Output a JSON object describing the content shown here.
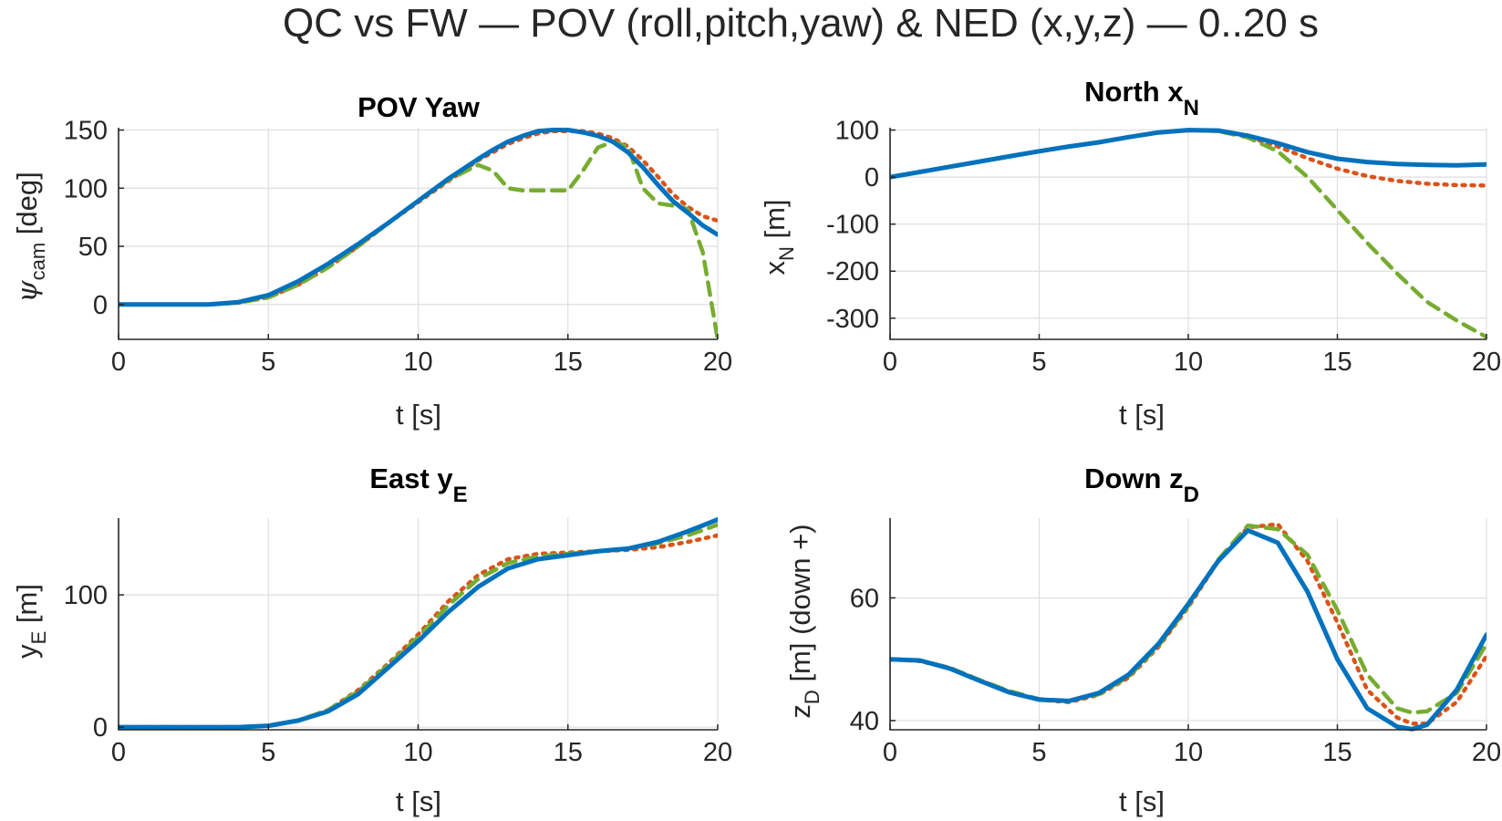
{
  "figure": {
    "title": "QC vs FW — POV (roll,pitch,yaw) & NED (x,y,z) — 0..20 s"
  },
  "colors": {
    "series_1": "#0072BD",
    "series_2": "#D95319",
    "series_3": "#77AC30"
  },
  "chart_data": [
    {
      "type": "line",
      "title_main": "POV Yaw",
      "title_sub": "",
      "xlabel": "t [s]",
      "ylabel_main": "ψ",
      "ylabel_sub": "cam",
      "ylabel_suffix": " [deg]",
      "xlim": [
        0,
        20
      ],
      "ylim": [
        -30,
        152
      ],
      "xticks": [
        0,
        5,
        10,
        15,
        20
      ],
      "yticks": [
        0,
        50,
        100,
        150
      ],
      "grid": true,
      "x": [
        0,
        1,
        2,
        3,
        4,
        5,
        6,
        7,
        8,
        9,
        10,
        11,
        12,
        12.5,
        13,
        13.5,
        14,
        14.5,
        15,
        15.5,
        16,
        16.5,
        17,
        17.5,
        18,
        18.5,
        19,
        19.5,
        20
      ],
      "series": [
        {
          "values": [
            0,
            0,
            0,
            0,
            2,
            8,
            20,
            35,
            52,
            70,
            89,
            108,
            125,
            133,
            140,
            145,
            149,
            150,
            150,
            148,
            145,
            140,
            131,
            118,
            103,
            89,
            79,
            68,
            60
          ]
        },
        {
          "values": [
            0,
            0,
            0,
            0,
            1.5,
            6,
            17,
            32,
            50,
            70,
            88,
            106,
            124,
            131,
            138,
            143,
            147,
            149,
            149,
            149,
            147,
            143,
            136,
            124,
            110,
            95,
            84,
            76,
            72
          ]
        },
        {
          "values": [
            0,
            0,
            0,
            0,
            1.5,
            6,
            17,
            32,
            50,
            70,
            89,
            107,
            120,
            115,
            100,
            98,
            98,
            98,
            98,
            115,
            135,
            140,
            136,
            100,
            87,
            85,
            82,
            45,
            -30
          ]
        }
      ]
    },
    {
      "type": "line",
      "title_main": "North x",
      "title_sub": "N",
      "xlabel": "t [s]",
      "ylabel_main": "x",
      "ylabel_sub": "N",
      "ylabel_suffix": " [m]",
      "xlim": [
        0,
        20
      ],
      "ylim": [
        -345,
        105
      ],
      "xticks": [
        0,
        5,
        10,
        15,
        20
      ],
      "yticks": [
        -300,
        -200,
        -100,
        0,
        100
      ],
      "grid": true,
      "x": [
        0,
        1,
        2,
        3,
        4,
        5,
        6,
        7,
        8,
        9,
        10,
        11,
        12,
        13,
        14,
        15,
        16,
        17,
        18,
        19,
        20
      ],
      "series": [
        {
          "values": [
            0,
            11,
            22,
            33,
            44,
            55,
            65,
            74,
            85,
            95,
            100,
            99,
            88,
            72,
            53,
            39,
            32,
            28,
            26,
            25,
            27
          ]
        },
        {
          "values": [
            0,
            11,
            22,
            33,
            44,
            55,
            65,
            74,
            85,
            95,
            100,
            98,
            86,
            65,
            40,
            18,
            2,
            -8,
            -14,
            -17,
            -18
          ]
        },
        {
          "values": [
            0,
            11,
            22,
            33,
            44,
            55,
            65,
            74,
            85,
            95,
            100,
            98,
            84,
            55,
            0,
            -70,
            -140,
            -205,
            -265,
            -305,
            -340
          ]
        }
      ]
    },
    {
      "type": "line",
      "title_main": "East y",
      "title_sub": "E",
      "xlabel": "t [s]",
      "ylabel_main": "y",
      "ylabel_sub": "E",
      "ylabel_suffix": " [m]",
      "xlim": [
        0,
        20
      ],
      "ylim": [
        -2,
        158
      ],
      "xticks": [
        0,
        5,
        10,
        15,
        20
      ],
      "yticks": [
        0,
        100
      ],
      "grid": true,
      "x": [
        0,
        1,
        2,
        3,
        4,
        5,
        6,
        7,
        8,
        9,
        10,
        11,
        12,
        13,
        14,
        15,
        16,
        17,
        18,
        19,
        20
      ],
      "series": [
        {
          "values": [
            0,
            0,
            0,
            0,
            0,
            1,
            5,
            12,
            25,
            45,
            65,
            87,
            106,
            120,
            127,
            130,
            133,
            135,
            140,
            148,
            157
          ]
        },
        {
          "values": [
            0,
            0,
            0,
            0,
            0,
            1,
            5,
            13,
            28,
            48,
            70,
            95,
            115,
            127,
            131,
            132,
            133,
            134,
            136,
            140,
            145
          ]
        },
        {
          "values": [
            0,
            0,
            0,
            0,
            0,
            1,
            5,
            13,
            27,
            47,
            68,
            92,
            112,
            124,
            129,
            131,
            133,
            135,
            139,
            145,
            153
          ]
        }
      ]
    },
    {
      "type": "line",
      "title_main": "Down z",
      "title_sub": "D",
      "xlabel": "t [s]",
      "ylabel_main": "z",
      "ylabel_sub": "D",
      "ylabel_suffix": " [m] (down +)",
      "xlim": [
        0,
        20
      ],
      "ylim": [
        38.5,
        73
      ],
      "xticks": [
        0,
        5,
        10,
        15,
        20
      ],
      "yticks": [
        40,
        60
      ],
      "grid": true,
      "x": [
        0,
        1,
        2,
        3,
        4,
        5,
        6,
        7,
        8,
        9,
        10,
        11,
        12,
        13,
        14,
        15,
        16,
        17,
        17.5,
        18,
        19,
        20
      ],
      "series": [
        {
          "values": [
            50,
            49.8,
            48.5,
            46.5,
            44.6,
            43.4,
            43.2,
            44.5,
            47.5,
            52.5,
            59,
            66,
            71,
            69,
            61,
            50,
            42,
            39,
            38.6,
            39.3,
            45,
            54
          ]
        },
        {
          "values": [
            50,
            49.7,
            48.6,
            46.6,
            44.7,
            43.4,
            43.0,
            44.2,
            47,
            52,
            58.5,
            66,
            71.5,
            72,
            66,
            56,
            45,
            40.5,
            39.5,
            39.5,
            43,
            50.5
          ]
        },
        {
          "values": [
            50,
            49.8,
            48.6,
            46.6,
            44.8,
            43.5,
            43.2,
            44.3,
            47.2,
            52.2,
            58.7,
            66.2,
            71.8,
            71.2,
            67,
            58,
            47.5,
            42,
            41.3,
            41.5,
            44.5,
            52.5
          ]
        }
      ]
    }
  ]
}
